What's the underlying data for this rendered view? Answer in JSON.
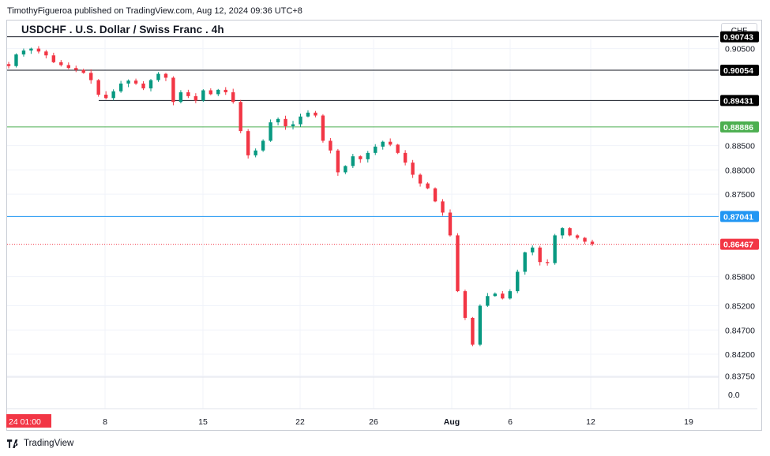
{
  "header": {
    "publisher_line": "TimothyFigueroa published on TradingView.com, Aug 12, 2024 09:36 UTC+8",
    "title": "USDCHF . U.S. Dollar / Swiss Franc . 4h",
    "currency_button": "CHF"
  },
  "footer": {
    "brand": "TradingView"
  },
  "chart_data": {
    "type": "candlestick",
    "symbol": "USDCHF",
    "timeframe": "4h",
    "colors": {
      "up": "#089981",
      "down": "#f23645",
      "grid": "#f0f3fa",
      "text": "#131722"
    },
    "y_axis": {
      "price_range": [
        0.8375,
        0.9085
      ],
      "ticks": [
        "0.90500",
        "0.88500",
        "0.88000",
        "0.87500",
        "0.85800",
        "0.85200",
        "0.84700",
        "0.84200",
        "0.83750"
      ],
      "volume_zero_label": "0.0"
    },
    "x_axis": {
      "ticks": [
        "8",
        "15",
        "22",
        "26",
        "Aug",
        "6",
        "12",
        "19"
      ],
      "cursor_label": "24  01:00"
    },
    "horizontal_levels": [
      {
        "price": 0.90743,
        "label": "0.90743",
        "color": "#131722",
        "style": "solid"
      },
      {
        "price": 0.90054,
        "label": "0.90054",
        "color": "#131722",
        "style": "solid"
      },
      {
        "price": 0.89431,
        "label": "0.89431",
        "color": "#131722",
        "style": "solid"
      },
      {
        "price": 0.88886,
        "label": "0.88886",
        "color": "#4caf50",
        "style": "solid"
      },
      {
        "price": 0.87041,
        "label": "0.87041",
        "color": "#2196f3",
        "style": "solid"
      },
      {
        "price": 0.86467,
        "label": "0.86467",
        "color": "#f23645",
        "style": "dotted"
      }
    ],
    "path": [
      0.9014,
      0.9038,
      0.9046,
      0.905,
      0.9044,
      0.9036,
      0.9022,
      0.9016,
      0.901,
      0.9006,
      0.9,
      0.8985,
      0.8955,
      0.8948,
      0.8962,
      0.8978,
      0.8984,
      0.8978,
      0.8968,
      0.8985,
      0.8998,
      0.899,
      0.894,
      0.896,
      0.8952,
      0.8943,
      0.8964,
      0.8956,
      0.8965,
      0.896,
      0.894,
      0.888,
      0.883,
      0.884,
      0.886,
      0.8898,
      0.8905,
      0.889,
      0.8894,
      0.891,
      0.8918,
      0.8912,
      0.886,
      0.884,
      0.8795,
      0.8808,
      0.8828,
      0.8822,
      0.8835,
      0.8848,
      0.8858,
      0.8852,
      0.8835,
      0.8815,
      0.879,
      0.8772,
      0.8762,
      0.8735,
      0.8712,
      0.8665,
      0.855,
      0.8495,
      0.844,
      0.852,
      0.854,
      0.8545,
      0.8535,
      0.855,
      0.859,
      0.863,
      0.864,
      0.861,
      0.8608,
      0.8665,
      0.868,
      0.8665,
      0.866,
      0.8652,
      0.8647
    ]
  }
}
